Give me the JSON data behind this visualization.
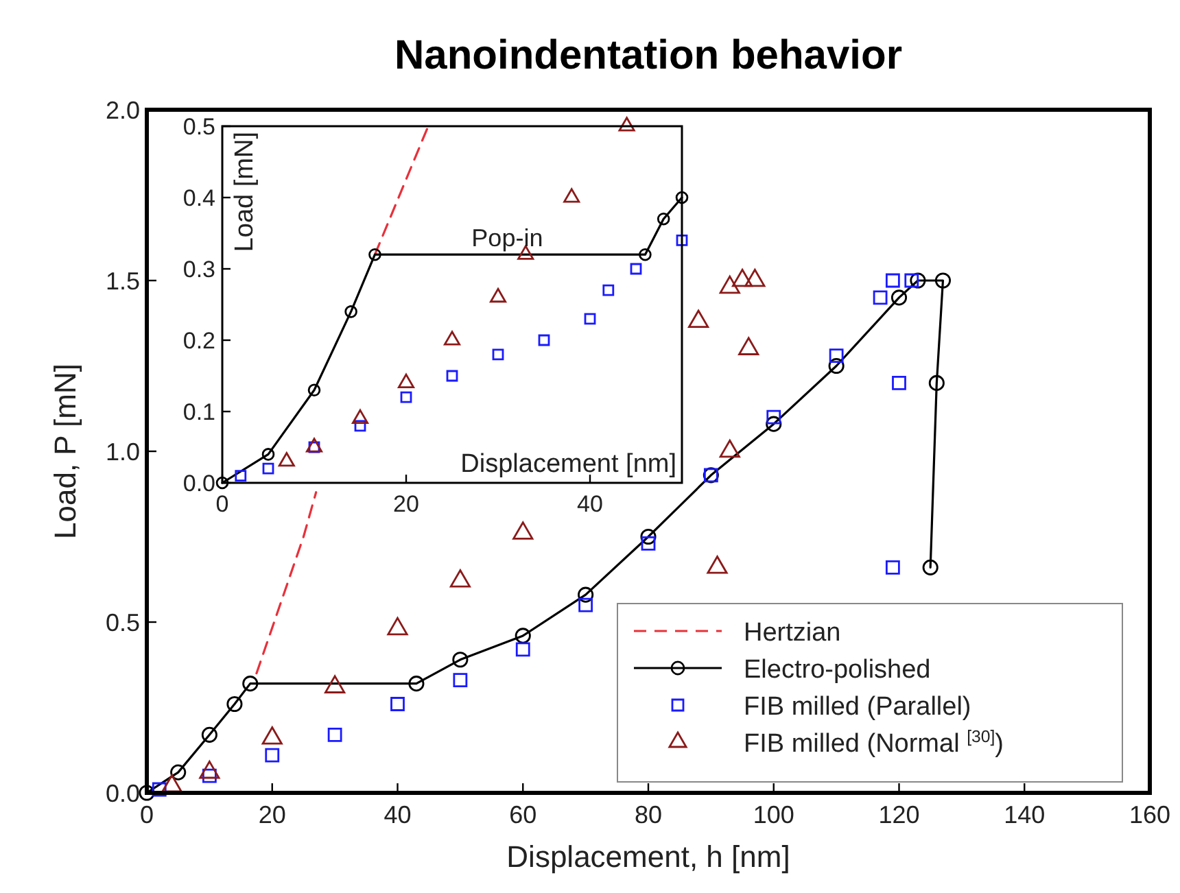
{
  "chart_data": [
    {
      "type": "scatter",
      "title": "Nanoindentation behavior",
      "xlabel": "Displacement, h [nm]",
      "ylabel": "Load, P [mN]",
      "xlim": [
        0,
        160
      ],
      "ylim": [
        0,
        2.0
      ],
      "xticks": [
        0,
        20,
        40,
        60,
        80,
        100,
        120,
        140,
        160
      ],
      "yticks": [
        {
          "value": 0,
          "label": "0.0"
        },
        0.5,
        {
          "value": 1,
          "label": "1.0"
        },
        1.5,
        {
          "value": 2,
          "label": "2.0"
        }
      ],
      "legend": "bottom right",
      "series": [
        {
          "name": "Hertzian",
          "type": "line",
          "color": "#e8303a",
          "line_style": "dashed",
          "marker": "none",
          "x": [
            17.5,
            25,
            27
          ],
          "values": [
            0.35,
            0.75,
            0.88
          ]
        },
        {
          "name": "Electro-polished",
          "type": "line",
          "color": "#000000",
          "marker": "circle",
          "x": [
            0,
            5,
            10,
            14,
            16.5,
            43,
            50,
            60,
            70,
            80,
            90,
            100,
            110,
            120,
            123,
            127,
            126,
            125
          ],
          "values": [
            0,
            0.06,
            0.17,
            0.26,
            0.32,
            0.32,
            0.39,
            0.46,
            0.58,
            0.75,
            0.93,
            1.08,
            1.25,
            1.45,
            1.5,
            1.5,
            1.2,
            0.66
          ]
        },
        {
          "name": "FIB milled (Parallel)",
          "color": "#1a1aff",
          "marker": "square",
          "x": [
            2,
            10,
            20,
            30,
            40,
            50,
            60,
            70,
            80,
            90,
            100,
            110,
            117,
            119,
            122,
            120,
            119
          ],
          "values": [
            0.01,
            0.05,
            0.11,
            0.17,
            0.26,
            0.33,
            0.42,
            0.55,
            0.73,
            0.93,
            1.1,
            1.28,
            1.45,
            1.5,
            1.5,
            1.2,
            0.66
          ]
        },
        {
          "name": "FIB milled (Normal $^{[30]}$)",
          "color": "#8b1a1a",
          "marker": "triangle",
          "x": [
            4,
            10,
            20,
            30,
            40,
            50,
            60,
            88,
            93,
            95,
            97,
            96,
            93,
            91
          ],
          "values": [
            0.02,
            0.06,
            0.16,
            0.31,
            0.48,
            0.62,
            0.76,
            1.38,
            1.48,
            1.5,
            1.5,
            1.3,
            1.0,
            0.66
          ]
        }
      ]
    },
    {
      "type": "scatter",
      "xlabel": "Displacement [nm]",
      "ylabel": "Load [mN]",
      "xlim": [
        0,
        50
      ],
      "ylim": [
        0,
        0.5
      ],
      "xticks": [
        0,
        20,
        40
      ],
      "yticks": [
        {
          "value": 0,
          "label": "0.0"
        },
        0.1,
        0.2,
        0.3,
        0.4,
        0.5
      ],
      "annotations": [
        {
          "text": "Pop-in",
          "x": 31,
          "y": 0.32
        }
      ],
      "series": [
        {
          "type": "line",
          "color": "#e8303a",
          "line_style": "dashed",
          "marker": "none",
          "x": [
            16.6,
            19.5,
            22.4
          ],
          "values": [
            0.32,
            0.41,
            0.5
          ]
        },
        {
          "type": "line",
          "color": "#000000",
          "marker": "circle",
          "x": [
            0,
            5,
            10,
            14,
            16.6,
            46,
            48,
            50
          ],
          "values": [
            0,
            0.04,
            0.13,
            0.24,
            0.32,
            0.32,
            0.37,
            0.4
          ]
        },
        {
          "color": "#1a1aff",
          "marker": "square",
          "x": [
            2,
            5,
            10,
            15,
            20,
            25,
            30,
            35,
            40,
            42,
            45,
            50
          ],
          "values": [
            0.01,
            0.02,
            0.05,
            0.08,
            0.12,
            0.15,
            0.18,
            0.2,
            0.23,
            0.27,
            0.3,
            0.34
          ]
        },
        {
          "color": "#8b1a1a",
          "marker": "triangle",
          "x": [
            7,
            10,
            15,
            20,
            25,
            30,
            33,
            38,
            44
          ],
          "values": [
            0.03,
            0.05,
            0.09,
            0.14,
            0.2,
            0.26,
            0.32,
            0.4,
            0.5
          ]
        }
      ]
    }
  ]
}
